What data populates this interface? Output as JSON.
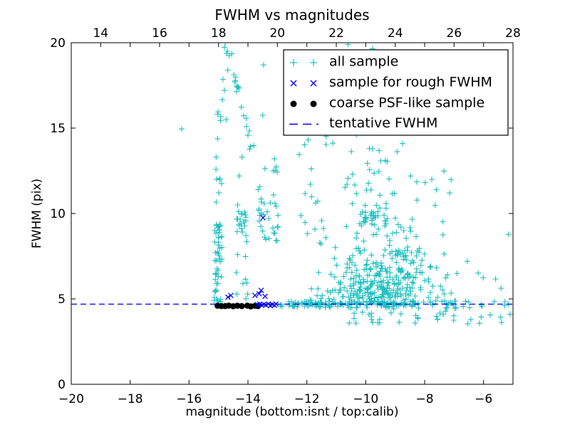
{
  "window": {
    "background": "#ffffff"
  },
  "chart_data": {
    "type": "scatter",
    "title": "FWHM vs magnitudes",
    "xlabel": "magnitude (bottom:isnt / top:calib)",
    "ylabel": "FWHM (pix)",
    "grid": false,
    "legend_position": "upper right",
    "axes": {
      "x_bottom": {
        "name": "isnt magnitude",
        "range": [
          -20,
          -5
        ],
        "ticks": [
          -20,
          -18,
          -16,
          -14,
          -12,
          -10,
          -8,
          -6
        ]
      },
      "x_top": {
        "name": "calib magnitude",
        "range": [
          13,
          28
        ],
        "ticks": [
          14,
          16,
          18,
          20,
          22,
          24,
          26,
          28
        ]
      },
      "y": {
        "name": "FWHM (pix)",
        "range": [
          0,
          20
        ],
        "ticks": [
          0,
          5,
          10,
          15,
          20
        ]
      }
    },
    "colors": {
      "all_sample": "#1ebfbf",
      "rough_fwhm": "#0000ff",
      "psf_like": "#000000",
      "tentative_line": "#0000ff",
      "axis": "#000000"
    },
    "seed": 7,
    "series": [
      {
        "name": "all sample",
        "marker": "plus",
        "color": "#1ebfbf",
        "points": [
          [
            -16.25,
            14.95
          ],
          [
            -15.08,
            13.3
          ],
          [
            -14.77,
            20.0
          ],
          [
            -14.7,
            19.5
          ],
          [
            -14.55,
            19.35
          ],
          [
            -14.35,
            10.5
          ],
          [
            -14.3,
            12.2
          ],
          [
            -14.2,
            13.3
          ],
          [
            -13.5,
            15.75
          ],
          [
            -13.47,
            18.7
          ],
          [
            -13.1,
            13.2
          ],
          [
            -12.4,
            18.95
          ],
          [
            -12.26,
            13.45
          ],
          [
            -11.75,
            18.9
          ],
          [
            -10.6,
            19.9
          ],
          [
            -9.77,
            19.65
          ],
          [
            -7.15,
            11.2
          ],
          [
            -6.55,
            7.2
          ],
          [
            -5.1,
            4.1
          ]
        ],
        "clusters": [
          {
            "x": [
              -15.15,
              -14.88
            ],
            "y": [
              4.8,
              9.4
            ],
            "n": 52
          },
          {
            "x": [
              -15.12,
              -14.86
            ],
            "y": [
              9.4,
              12.6
            ],
            "n": 7
          },
          {
            "x": [
              -15.1,
              -14.72
            ],
            "y": [
              13.2,
              17.9
            ],
            "n": 9
          },
          {
            "type": "diag",
            "from": [
              -14.75,
              19.6
            ],
            "to": [
              -13.85,
              13.9
            ],
            "jitter": [
              0.09,
              0.35
            ],
            "n": 22
          },
          {
            "x": [
              -14.4,
              -14.05
            ],
            "y": [
              8.45,
              10.15
            ],
            "n": 20
          },
          {
            "x": [
              -14.42,
              -14.0
            ],
            "y": [
              5.0,
              8.45
            ],
            "n": 10
          },
          {
            "x": [
              -13.68,
              -12.92
            ],
            "y": [
              8.3,
              11.6
            ],
            "n": 30
          },
          {
            "x": [
              -13.7,
              -12.9
            ],
            "y": [
              11.6,
              12.9
            ],
            "n": 5
          },
          {
            "x": [
              -12.35,
              -11.15
            ],
            "y": [
              6.0,
              13.0
            ],
            "n": 16
          },
          {
            "x": [
              -12.1,
              -8.75
            ],
            "y": [
              13.4,
              14.7
            ],
            "n": 12
          },
          {
            "x": [
              -11.85,
              -9.5
            ],
            "y": [
              14.8,
              16.4
            ],
            "n": 6
          },
          {
            "type": "gauss",
            "center": [
              -9.75,
              9.8
            ],
            "sigma": [
              0.38,
              0.55
            ],
            "clip": {
              "x": [
                -10.5,
                -8.9
              ],
              "y": [
                8.7,
                11.0
              ]
            },
            "n": 38
          },
          {
            "x": [
              -10.8,
              -8.9
            ],
            "y": [
              11.0,
              13.2
            ],
            "n": 20
          },
          {
            "x": [
              -9.0,
              -7.0
            ],
            "y": [
              9.0,
              12.6
            ],
            "n": 12
          },
          {
            "type": "gauss",
            "center": [
              -9.35,
              6.3
            ],
            "sigma": [
              0.78,
              1.25
            ],
            "clip": {
              "x": [
                -11.4,
                -7.2
              ],
              "y": [
                4.75,
                10.6
              ]
            },
            "n": 250
          },
          {
            "x": [
              -11.9,
              -7.0
            ],
            "y": [
              4.6,
              5.6
            ],
            "n": 85
          },
          {
            "x": [
              -12.9,
              -8.6
            ],
            "y": [
              4.48,
              4.85
            ],
            "n": 115
          },
          {
            "x": [
              -8.6,
              -6.6
            ],
            "y": [
              4.45,
              4.9
            ],
            "n": 22
          },
          {
            "x": [
              -6.6,
              -5.05
            ],
            "y": [
              4.45,
              4.9
            ],
            "n": 8
          },
          {
            "x": [
              -10.6,
              -7.3
            ],
            "y": [
              3.55,
              4.45
            ],
            "n": 26
          },
          {
            "x": [
              -7.3,
              -5.1
            ],
            "y": [
              3.4,
              4.45
            ],
            "n": 10
          },
          {
            "x": [
              -7.4,
              -5.0
            ],
            "y": [
              5.0,
              9.0
            ],
            "n": 8
          }
        ]
      },
      {
        "name": "sample for rough FWHM",
        "marker": "x",
        "color": "#0000ff",
        "points": [
          [
            -13.68,
            4.66
          ],
          [
            -13.6,
            4.7
          ],
          [
            -13.53,
            4.63
          ],
          [
            -13.46,
            4.68
          ],
          [
            -13.39,
            4.64
          ],
          [
            -13.31,
            4.7
          ],
          [
            -13.24,
            4.6
          ],
          [
            -13.17,
            4.67
          ],
          [
            -13.1,
            4.63
          ],
          [
            -13.05,
            4.7
          ],
          [
            -14.68,
            5.1
          ],
          [
            -14.58,
            5.2
          ],
          [
            -13.76,
            5.2
          ],
          [
            -13.62,
            5.3
          ],
          [
            -13.55,
            5.5
          ],
          [
            -13.42,
            5.15
          ],
          [
            -13.49,
            9.75
          ]
        ]
      },
      {
        "name": "coarse PSF-like sample",
        "marker": "circle",
        "color": "#000000",
        "points": [
          [
            -15.03,
            4.6
          ],
          [
            -14.9,
            4.58
          ],
          [
            -14.77,
            4.58
          ],
          [
            -14.65,
            4.61
          ],
          [
            -14.5,
            4.57
          ],
          [
            -14.36,
            4.6
          ],
          [
            -14.21,
            4.58
          ],
          [
            -14.02,
            4.61
          ],
          [
            -13.9,
            4.56
          ],
          [
            -13.75,
            4.6
          ],
          [
            -13.66,
            4.58
          ]
        ]
      },
      {
        "name": "tentative FWHM",
        "marker": "dashed-line",
        "color": "#0000ff",
        "y": 4.69
      }
    ]
  }
}
